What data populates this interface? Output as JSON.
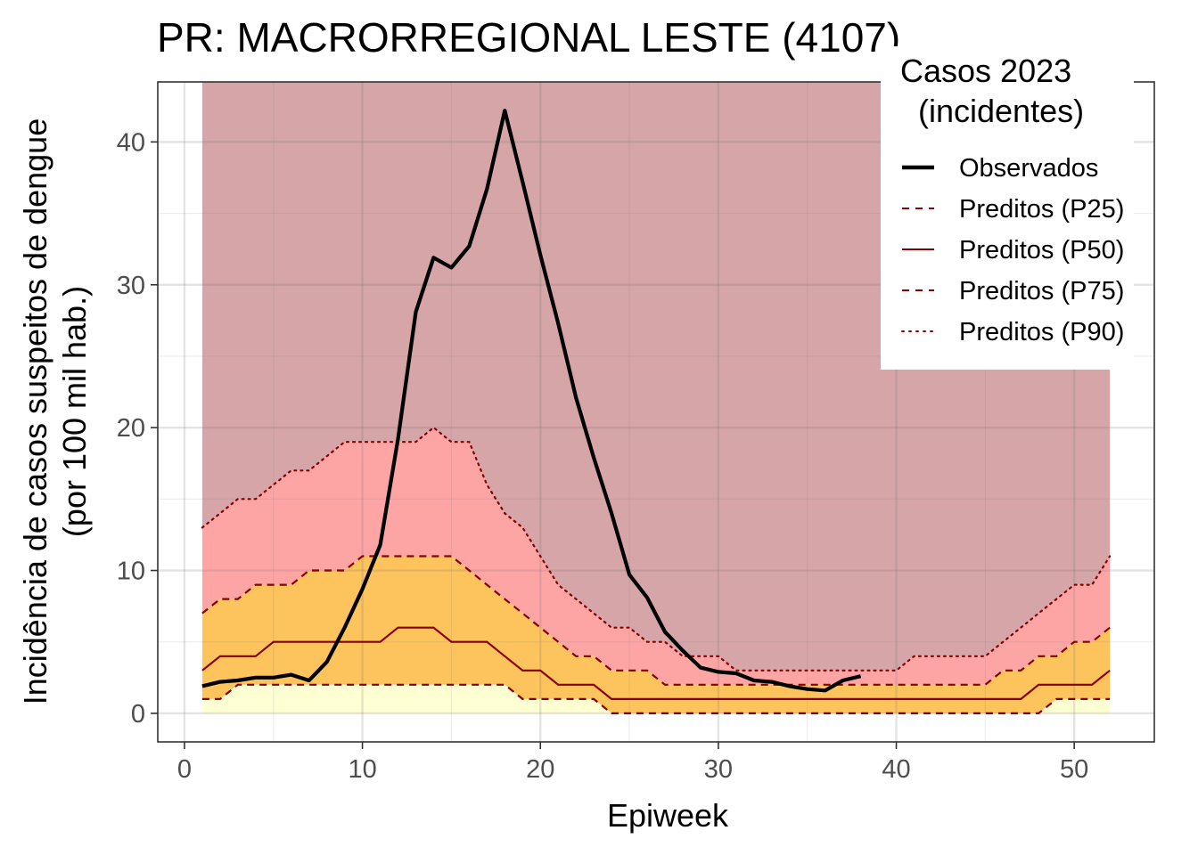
{
  "chart_data": {
    "type": "area",
    "title": "PR: MACRORREGIONAL LESTE (4107)",
    "xlabel": "Epiweek",
    "ylabel_line1": "Incidência de casos suspeitos de dengue",
    "ylabel_line2": "(por 100 mil hab.)",
    "xlim": [
      -1.5,
      54.5
    ],
    "ylim": [
      -2,
      44.2
    ],
    "x_ticks": [
      0,
      10,
      20,
      30,
      40,
      50
    ],
    "y_ticks": [
      0,
      10,
      20,
      30,
      40
    ],
    "grid": true,
    "legend_position": "top-right",
    "legend": {
      "title_line1": "Casos 2023",
      "title_line2": "(incidentes)",
      "entries": [
        {
          "label": "Observados",
          "style": "solid-thick",
          "color": "#000000"
        },
        {
          "label": "Preditos (P25)",
          "style": "dashed",
          "color": "#8b0000"
        },
        {
          "label": "Preditos (P50)",
          "style": "solid",
          "color": "#8b0000"
        },
        {
          "label": "Preditos (P75)",
          "style": "dashed",
          "color": "#8b0000"
        },
        {
          "label": "Preditos (P90)",
          "style": "dotted",
          "color": "#8b0000"
        }
      ]
    },
    "band_colors": {
      "low": "#ffffd4",
      "mid": "#fdc35c",
      "high": "#fda5a5",
      "top": "#d5a5a7"
    },
    "top_band_max": 44.2,
    "weeks": [
      1,
      2,
      3,
      4,
      5,
      6,
      7,
      8,
      9,
      10,
      11,
      12,
      13,
      14,
      15,
      16,
      17,
      18,
      19,
      20,
      21,
      22,
      23,
      24,
      25,
      26,
      27,
      28,
      29,
      30,
      31,
      32,
      33,
      34,
      35,
      36,
      37,
      38,
      39,
      40,
      41,
      42,
      43,
      44,
      45,
      46,
      47,
      48,
      49,
      50,
      51,
      52
    ],
    "p25": [
      1,
      1,
      2,
      2,
      2,
      2,
      2,
      2,
      2,
      2,
      2,
      2,
      2,
      2,
      2,
      2,
      2,
      2,
      1,
      1,
      1,
      1,
      1,
      0,
      0,
      0,
      0,
      0,
      0,
      0,
      0,
      0,
      0,
      0,
      0,
      0,
      0,
      0,
      0,
      0,
      0,
      0,
      0,
      0,
      0,
      0,
      0,
      0,
      1,
      1,
      1,
      1
    ],
    "p50": [
      3,
      4,
      4,
      4,
      5,
      5,
      5,
      5,
      5,
      5,
      5,
      6,
      6,
      6,
      5,
      5,
      5,
      4,
      3,
      3,
      2,
      2,
      2,
      1,
      1,
      1,
      1,
      1,
      1,
      1,
      1,
      1,
      1,
      1,
      1,
      1,
      1,
      1,
      1,
      1,
      1,
      1,
      1,
      1,
      1,
      1,
      1,
      2,
      2,
      2,
      2,
      3
    ],
    "p75": [
      7,
      8,
      8,
      9,
      9,
      9,
      10,
      10,
      10,
      11,
      11,
      11,
      11,
      11,
      11,
      10,
      9,
      8,
      7,
      6,
      5,
      4,
      4,
      3,
      3,
      3,
      2,
      2,
      2,
      2,
      2,
      2,
      2,
      2,
      2,
      2,
      2,
      2,
      2,
      2,
      2,
      2,
      2,
      2,
      2,
      3,
      3,
      4,
      4,
      5,
      5,
      6
    ],
    "p90": [
      13,
      14,
      15,
      15,
      16,
      17,
      17,
      18,
      19,
      19,
      19,
      19,
      19,
      20,
      19,
      19,
      16,
      14,
      13,
      11,
      9,
      8,
      7,
      6,
      6,
      5,
      5,
      4,
      4,
      4,
      3,
      3,
      3,
      3,
      3,
      3,
      3,
      3,
      3,
      3,
      4,
      4,
      4,
      4,
      4,
      5,
      6,
      7,
      8,
      9,
      9,
      11
    ],
    "observed_weeks": [
      1,
      2,
      3,
      4,
      5,
      6,
      7,
      8,
      9,
      10,
      11,
      12,
      13,
      14,
      15,
      16,
      17,
      18,
      19,
      20,
      21,
      22,
      23,
      24,
      25,
      26,
      27,
      28,
      29,
      30,
      31,
      32,
      33,
      34,
      35,
      36,
      37,
      38
    ],
    "observed": [
      1.9,
      2.2,
      2.3,
      2.5,
      2.5,
      2.7,
      2.3,
      3.6,
      6.0,
      8.7,
      11.8,
      19.2,
      28.1,
      31.9,
      31.2,
      32.7,
      36.7,
      42.2,
      37.2,
      32.1,
      27.3,
      22.1,
      17.9,
      14.0,
      9.7,
      8.1,
      5.7,
      4.4,
      3.2,
      2.9,
      2.8,
      2.3,
      2.2,
      1.9,
      1.7,
      1.6,
      2.3,
      2.6
    ]
  }
}
